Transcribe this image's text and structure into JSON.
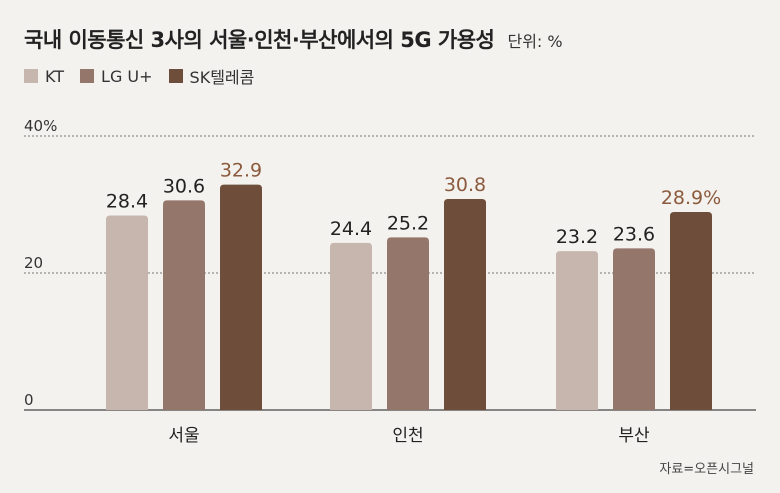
{
  "title": "국내 이동통신 3사의 서울·인천·부산에서의 5G 가용성",
  "unit": "단위: %",
  "source": "자료=오픈시그널",
  "chart_data": {
    "type": "bar",
    "title": "국내 이동통신 3사의 서울·인천·부산에서의 5G 가용성",
    "unit": "%",
    "categories": [
      "서울",
      "인천",
      "부산"
    ],
    "series": [
      {
        "name": "KT",
        "color": "#c6b6ad",
        "values": [
          28.4,
          24.4,
          23.2
        ],
        "labels": [
          "28.4",
          "24.4",
          "23.2"
        ]
      },
      {
        "name": "LG U+",
        "color": "#95766a",
        "values": [
          30.6,
          25.2,
          23.6
        ],
        "labels": [
          "30.6",
          "25.2",
          "23.6"
        ]
      },
      {
        "name": "SK텔레콤",
        "color": "#6e4e3b",
        "values": [
          32.9,
          30.8,
          28.9
        ],
        "labels": [
          "32.9",
          "30.8",
          "28.9%"
        ]
      }
    ],
    "yticks": [
      {
        "value": 0,
        "label": "0"
      },
      {
        "value": 20,
        "label": "20"
      },
      {
        "value": 40,
        "label": "40%"
      }
    ],
    "ylim": [
      0,
      40
    ],
    "grid": true,
    "legend_position": "top-left",
    "highlight_label_color": "#8c5a3c"
  }
}
